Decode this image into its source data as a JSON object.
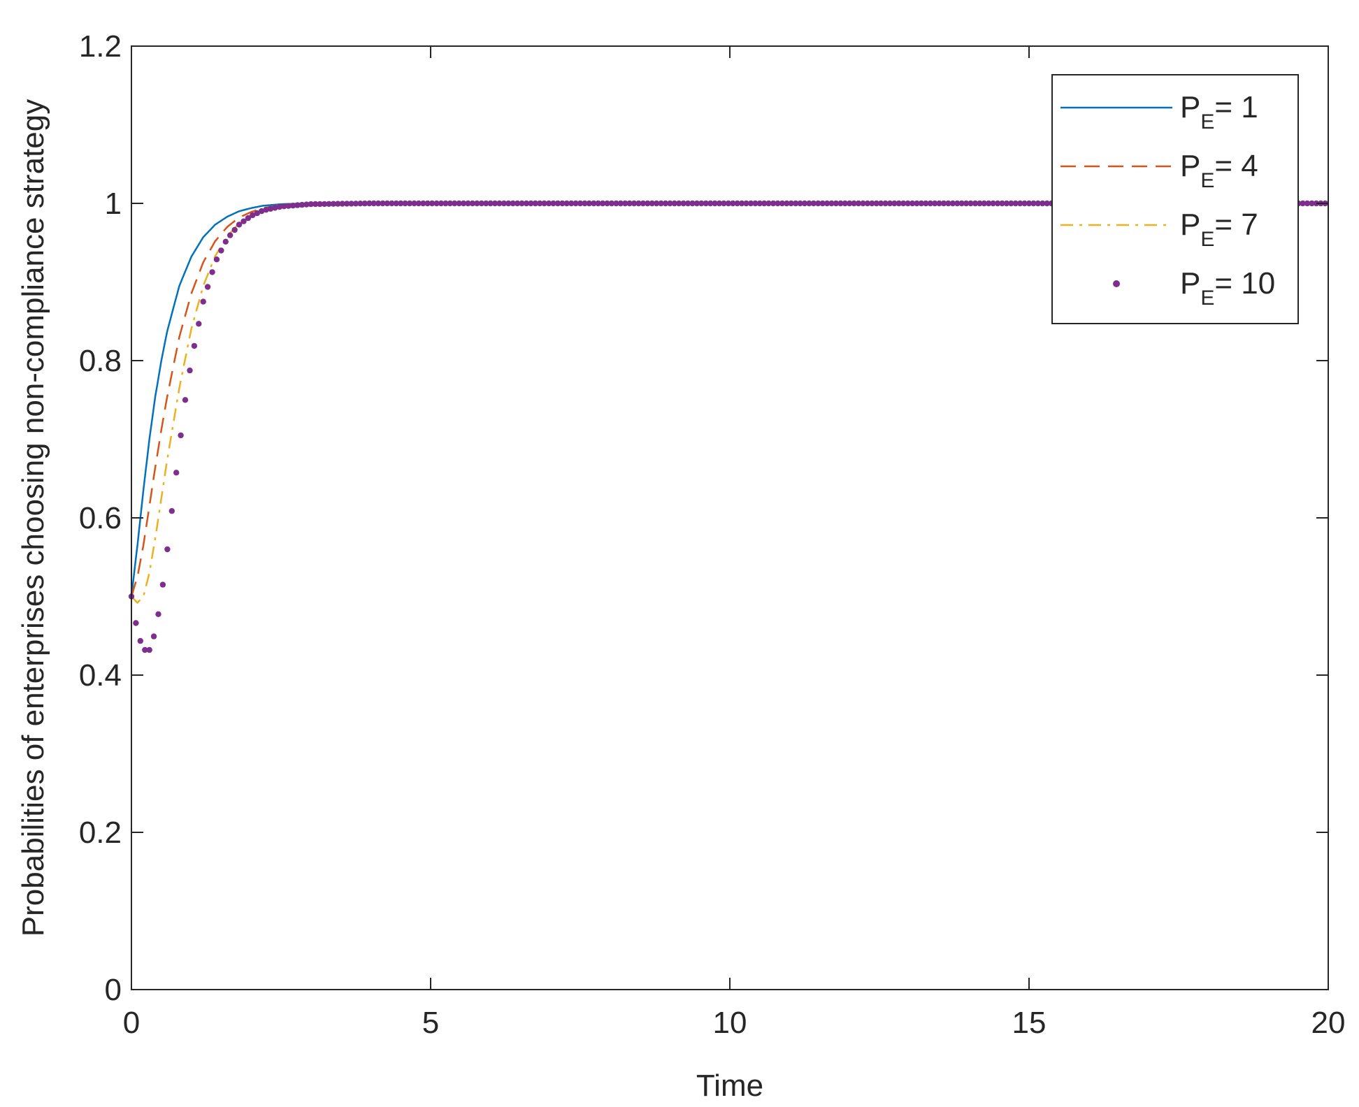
{
  "chart_data": {
    "type": "line",
    "title": "",
    "xlabel": "Time",
    "ylabel": "Probabilities of enterprises choosing non-compliance strategy",
    "xlim": [
      0,
      20
    ],
    "ylim": [
      0,
      1.2
    ],
    "xticks": [
      0,
      5,
      10,
      15,
      20
    ],
    "xtick_labels": [
      "0",
      "5",
      "10",
      "15",
      "20"
    ],
    "yticks": [
      0,
      0.2,
      0.4,
      0.6,
      0.8,
      1,
      1.2
    ],
    "ytick_labels": [
      "0",
      "0.2",
      "0.4",
      "0.6",
      "0.8",
      "1",
      "1.2"
    ],
    "grid": false,
    "legend_position": "top-right",
    "series": [
      {
        "label_main": "P",
        "label_sub": "E",
        "label_rest": "= 1",
        "style": "solid",
        "color": "#0072BD",
        "x": [
          0,
          0.1,
          0.2,
          0.3,
          0.4,
          0.5,
          0.6,
          0.8,
          1.0,
          1.2,
          1.4,
          1.6,
          1.8,
          2.0,
          2.2,
          2.5,
          3.0,
          4.0,
          20
        ],
        "y": [
          0.5,
          0.565,
          0.635,
          0.7,
          0.755,
          0.8,
          0.838,
          0.895,
          0.932,
          0.957,
          0.973,
          0.983,
          0.99,
          0.994,
          0.997,
          0.999,
          1.0,
          1.0,
          1.0
        ]
      },
      {
        "label_main": "P",
        "label_sub": "E",
        "label_rest": "= 4",
        "style": "dashed",
        "color": "#D95319",
        "x": [
          0,
          0.1,
          0.2,
          0.3,
          0.4,
          0.5,
          0.6,
          0.8,
          1.0,
          1.2,
          1.4,
          1.6,
          1.8,
          2.0,
          2.2,
          2.5,
          3.0,
          4.0,
          20
        ],
        "y": [
          0.5,
          0.525,
          0.565,
          0.615,
          0.665,
          0.712,
          0.755,
          0.83,
          0.885,
          0.925,
          0.952,
          0.97,
          0.982,
          0.989,
          0.994,
          0.998,
          1.0,
          1.0,
          1.0
        ]
      },
      {
        "label_main": "P",
        "label_sub": "E",
        "label_rest": "= 7",
        "style": "dashdot",
        "color": "#EDB120",
        "x": [
          0,
          0.1,
          0.2,
          0.3,
          0.4,
          0.5,
          0.6,
          0.8,
          1.0,
          1.2,
          1.4,
          1.6,
          1.8,
          2.0,
          2.2,
          2.5,
          3.0,
          4.0,
          20
        ],
        "y": [
          0.5,
          0.492,
          0.5,
          0.53,
          0.575,
          0.625,
          0.675,
          0.765,
          0.84,
          0.895,
          0.933,
          0.958,
          0.975,
          0.985,
          0.991,
          0.996,
          0.999,
          1.0,
          1.0
        ]
      },
      {
        "label_main": "P",
        "label_sub": "E",
        "label_rest": "= 10",
        "style": "dotted",
        "color": "#7E2F8E",
        "x": [
          0,
          0.1,
          0.2,
          0.3,
          0.4,
          0.5,
          0.6,
          0.7,
          0.8,
          0.9,
          1.0,
          1.2,
          1.4,
          1.6,
          1.8,
          2.0,
          2.2,
          2.5,
          3.0,
          4.0,
          20
        ],
        "y": [
          0.5,
          0.455,
          0.432,
          0.432,
          0.455,
          0.5,
          0.56,
          0.625,
          0.69,
          0.75,
          0.8,
          0.875,
          0.925,
          0.955,
          0.973,
          0.984,
          0.991,
          0.996,
          0.999,
          1.0,
          1.0
        ]
      }
    ]
  }
}
